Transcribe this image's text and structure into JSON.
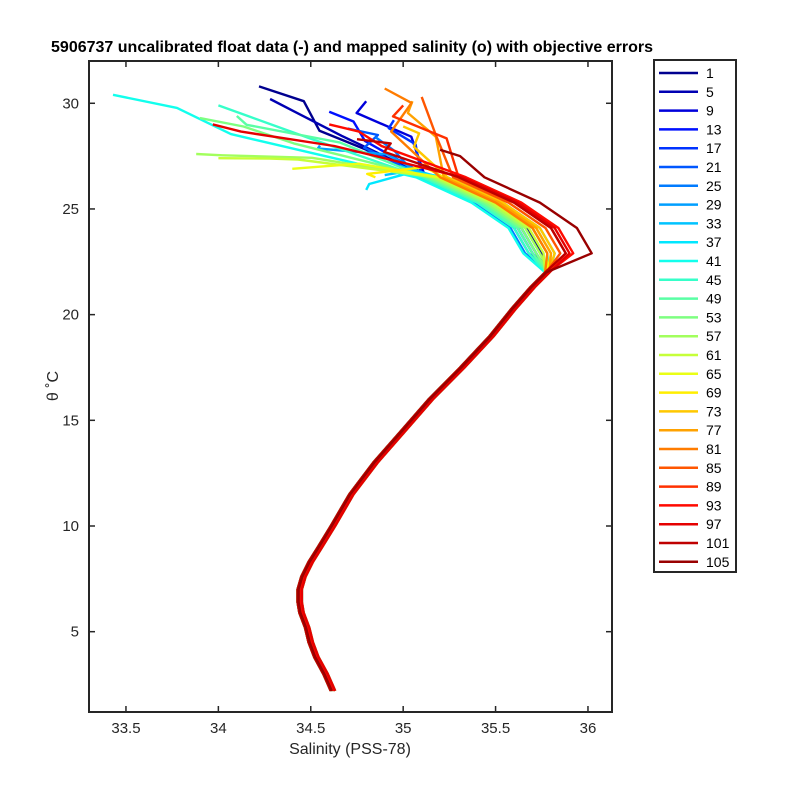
{
  "chart_data": {
    "type": "line",
    "title": "5906737 uncalibrated float data (-) and mapped salinity (o) with objective errors",
    "xlabel": "Salinity (PSS-78)",
    "ylabel": "θ ˚C",
    "xlim": [
      33.3,
      36.13
    ],
    "ylim": [
      1.2,
      32.0
    ],
    "xticks": [
      33.5,
      34,
      34.5,
      35,
      35.5,
      36
    ],
    "xtick_labels": [
      "33.5",
      "34",
      "34.5",
      "35",
      "35.5",
      "36"
    ],
    "yticks": [
      5,
      10,
      15,
      20,
      25,
      30
    ],
    "ytick_labels": [
      "5",
      "10",
      "15",
      "20",
      "25",
      "30"
    ],
    "grid": false,
    "legend_position": "outside-right",
    "common_profile": {
      "x": [
        34.62,
        34.58,
        34.53,
        34.5,
        34.48,
        34.45,
        34.44,
        34.44,
        34.46,
        34.5,
        34.55,
        34.62,
        34.72,
        34.85,
        35.0,
        35.15,
        35.32,
        35.48,
        35.6,
        35.7,
        35.78
      ],
      "y": [
        2.2,
        3.0,
        3.8,
        4.5,
        5.2,
        5.9,
        6.4,
        7.0,
        7.6,
        8.3,
        9.0,
        10.0,
        11.5,
        13.0,
        14.5,
        16.0,
        17.5,
        19.0,
        20.3,
        21.3,
        22.0
      ]
    },
    "series": [
      {
        "name": "1",
        "color": "#00008F",
        "peak": 35.75,
        "surface_x": 34.22,
        "surface_y": 30.8
      },
      {
        "name": "5",
        "color": "#0000B3",
        "peak": 35.72,
        "surface_x": 34.28,
        "surface_y": 30.2
      },
      {
        "name": "9",
        "color": "#0000DB",
        "peak": 35.7,
        "surface_x": 34.8,
        "surface_y": 30.1
      },
      {
        "name": "13",
        "color": "#0010FF",
        "peak": 35.72,
        "surface_x": 34.6,
        "surface_y": 29.6
      },
      {
        "name": "17",
        "color": "#0033FF",
        "peak": 35.68,
        "surface_x": 34.95,
        "surface_y": 29.2
      },
      {
        "name": "21",
        "color": "#0057FF",
        "peak": 35.7,
        "surface_x": 34.7,
        "surface_y": 28.8
      },
      {
        "name": "25",
        "color": "#007BFF",
        "peak": 35.66,
        "surface_x": 34.85,
        "surface_y": 28.4
      },
      {
        "name": "29",
        "color": "#009FFF",
        "peak": 35.72,
        "surface_x": 34.55,
        "surface_y": 28.0
      },
      {
        "name": "33",
        "color": "#00C3FF",
        "peak": 35.78,
        "surface_x": 34.9,
        "surface_y": 26.6
      },
      {
        "name": "37",
        "color": "#00E7FF",
        "peak": 35.82,
        "surface_x": 34.8,
        "surface_y": 25.9
      },
      {
        "name": "41",
        "color": "#12FFED",
        "peak": 35.65,
        "surface_x": 33.43,
        "surface_y": 30.4
      },
      {
        "name": "45",
        "color": "#36FFC9",
        "peak": 35.68,
        "surface_x": 34.0,
        "surface_y": 29.9
      },
      {
        "name": "49",
        "color": "#5AFFA5",
        "peak": 35.7,
        "surface_x": 34.1,
        "surface_y": 29.4
      },
      {
        "name": "53",
        "color": "#7EFF81",
        "peak": 35.72,
        "surface_x": 33.9,
        "surface_y": 29.3
      },
      {
        "name": "57",
        "color": "#A2FF5D",
        "peak": 35.74,
        "surface_x": 33.88,
        "surface_y": 27.6
      },
      {
        "name": "61",
        "color": "#C6FF39",
        "peak": 35.76,
        "surface_x": 34.0,
        "surface_y": 27.4
      },
      {
        "name": "65",
        "color": "#EAFF15",
        "peak": 35.78,
        "surface_x": 34.4,
        "surface_y": 26.9
      },
      {
        "name": "69",
        "color": "#FFEE00",
        "peak": 35.8,
        "surface_x": 34.85,
        "surface_y": 26.5
      },
      {
        "name": "73",
        "color": "#FFC800",
        "peak": 35.82,
        "surface_x": 35.0,
        "surface_y": 28.9
      },
      {
        "name": "77",
        "color": "#FFA200",
        "peak": 35.8,
        "surface_x": 35.05,
        "surface_y": 30.1
      },
      {
        "name": "81",
        "color": "#FF7C00",
        "peak": 35.78,
        "surface_x": 34.9,
        "surface_y": 30.7
      },
      {
        "name": "85",
        "color": "#FF5600",
        "peak": 35.85,
        "surface_x": 35.1,
        "surface_y": 30.3
      },
      {
        "name": "89",
        "color": "#FF3000",
        "peak": 35.88,
        "surface_x": 35.0,
        "surface_y": 29.9
      },
      {
        "name": "93",
        "color": "#FF0A00",
        "peak": 35.92,
        "surface_x": 34.6,
        "surface_y": 29.0
      },
      {
        "name": "97",
        "color": "#E50000",
        "peak": 35.9,
        "surface_x": 33.97,
        "surface_y": 29.0
      },
      {
        "name": "101",
        "color": "#BF0000",
        "peak": 35.88,
        "surface_x": 34.75,
        "surface_y": 28.3
      },
      {
        "name": "105",
        "color": "#990000",
        "peak": 36.02,
        "surface_x": 35.2,
        "surface_y": 27.8
      }
    ]
  }
}
